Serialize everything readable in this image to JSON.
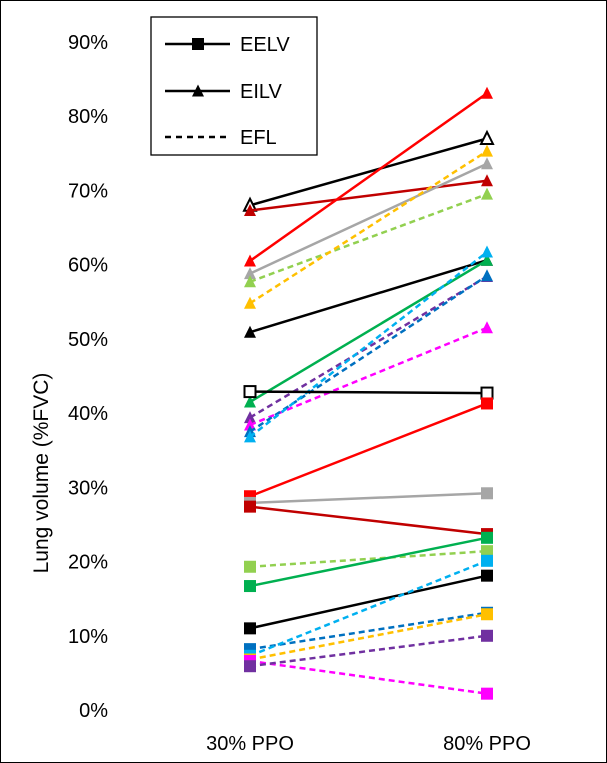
{
  "chart_data": {
    "type": "line",
    "title": "",
    "xlabel": "",
    "ylabel": "Lung volume (%FVC)",
    "categories": [
      "30% PPO",
      "80% PPO"
    ],
    "ylim": [
      0,
      90
    ],
    "y_ticks": [
      "0%",
      "10%",
      "20%",
      "30%",
      "40%",
      "50%",
      "60%",
      "70%",
      "80%",
      "90%"
    ],
    "grid": false,
    "legend_position": "top-left",
    "legend": [
      {
        "label": "EELV",
        "marker": "square",
        "dash": false
      },
      {
        "label": "EILV",
        "marker": "triangle",
        "dash": false
      },
      {
        "label": "EFL",
        "marker": "none",
        "dash": true
      }
    ],
    "series": [
      {
        "color": "#000000",
        "marker": "triangle-open",
        "dash": false,
        "values": [
          68.0,
          77.0
        ]
      },
      {
        "color": "#c00000",
        "marker": "triangle",
        "dash": false,
        "values": [
          67.3,
          71.3
        ]
      },
      {
        "color": "#ff0000",
        "marker": "triangle",
        "dash": false,
        "values": [
          60.5,
          83.1
        ]
      },
      {
        "color": "#a6a6a6",
        "marker": "triangle",
        "dash": false,
        "values": [
          58.8,
          73.6
        ]
      },
      {
        "color": "#92d050",
        "marker": "triangle",
        "dash": true,
        "values": [
          57.7,
          69.5
        ]
      },
      {
        "color": "#ffc000",
        "marker": "triangle",
        "dash": true,
        "values": [
          54.8,
          75.3
        ]
      },
      {
        "color": "#000000",
        "marker": "triangle",
        "dash": false,
        "values": [
          50.9,
          60.6
        ]
      },
      {
        "color": "#00b050",
        "marker": "triangle",
        "dash": false,
        "values": [
          41.5,
          60.6
        ]
      },
      {
        "color": "#7030a0",
        "marker": "triangle",
        "dash": true,
        "values": [
          39.4,
          58.4
        ]
      },
      {
        "color": "#ff00ff",
        "marker": "triangle",
        "dash": true,
        "values": [
          38.4,
          51.5
        ]
      },
      {
        "color": "#0070c0",
        "marker": "triangle",
        "dash": true,
        "values": [
          37.5,
          58.5
        ]
      },
      {
        "color": "#00b0f0",
        "marker": "triangle",
        "dash": true,
        "values": [
          36.8,
          61.7
        ]
      },
      {
        "color": "#000000",
        "marker": "square-open",
        "dash": false,
        "values": [
          42.9,
          42.7
        ]
      },
      {
        "color": "#ff0000",
        "marker": "square",
        "dash": false,
        "values": [
          28.8,
          41.3
        ]
      },
      {
        "color": "#a6a6a6",
        "marker": "square",
        "dash": false,
        "values": [
          27.9,
          29.2
        ]
      },
      {
        "color": "#c00000",
        "marker": "square",
        "dash": false,
        "values": [
          27.4,
          23.7
        ]
      },
      {
        "color": "#92d050",
        "marker": "square",
        "dash": true,
        "values": [
          19.3,
          21.4
        ]
      },
      {
        "color": "#00b050",
        "marker": "square",
        "dash": false,
        "values": [
          16.7,
          23.2
        ]
      },
      {
        "color": "#000000",
        "marker": "square",
        "dash": false,
        "values": [
          11.0,
          18.1
        ]
      },
      {
        "color": "#0070c0",
        "marker": "square",
        "dash": true,
        "values": [
          8.2,
          13.1
        ]
      },
      {
        "color": "#00b0f0",
        "marker": "square",
        "dash": true,
        "values": [
          7.3,
          20.1
        ]
      },
      {
        "color": "#ffc000",
        "marker": "square",
        "dash": true,
        "values": [
          6.8,
          12.9
        ]
      },
      {
        "color": "#ff00ff",
        "marker": "square",
        "dash": true,
        "values": [
          6.6,
          2.2
        ]
      },
      {
        "color": "#7030a0",
        "marker": "square",
        "dash": true,
        "values": [
          5.9,
          10.0
        ]
      }
    ]
  }
}
